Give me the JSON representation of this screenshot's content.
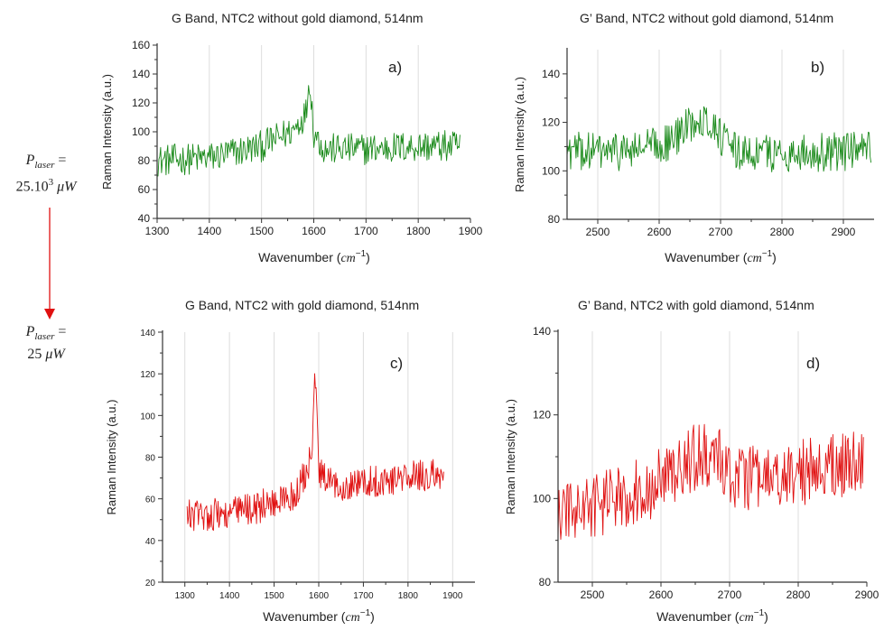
{
  "chart_data": [
    {
      "type": "line",
      "panel": "a)",
      "title": "G Band, NTC2 without gold diamond, 514nm",
      "xlabel": "Wavenumber",
      "xlabel_unit": "cm",
      "xlabel_exp": "−1",
      "ylabel": "Raman Intensity (a.u.)",
      "xlim": [
        1300,
        1900
      ],
      "ylim": [
        40,
        160
      ],
      "xticks": [
        1300,
        1400,
        1500,
        1600,
        1700,
        1800,
        1900
      ],
      "yticks": [
        40,
        60,
        80,
        100,
        120,
        140,
        160
      ],
      "grid": "vertical",
      "color": "#1a8a1a",
      "series": [
        {
          "x_start": 1300,
          "x_end": 1880,
          "noise": 11,
          "profile": [
            [
              1300,
              80
            ],
            [
              1400,
              82
            ],
            [
              1500,
              90
            ],
            [
              1560,
              101
            ],
            [
              1585,
              113
            ],
            [
              1592,
              138
            ],
            [
              1600,
              100
            ],
            [
              1620,
              88
            ],
            [
              1700,
              88
            ],
            [
              1800,
              90
            ],
            [
              1880,
              90
            ]
          ]
        }
      ]
    },
    {
      "type": "line",
      "panel": "b)",
      "title": "G’ Band, NTC2 without gold diamond, 514nm",
      "xlabel": "Wavenumber",
      "xlabel_unit": "cm",
      "xlabel_exp": "−1",
      "ylabel": "Raman Intensity (a.u.)",
      "xlim": [
        2450,
        2950
      ],
      "ylim": [
        80,
        150
      ],
      "xticks": [
        2500,
        2600,
        2700,
        2800,
        2900
      ],
      "yticks": [
        80,
        100,
        120,
        140
      ],
      "grid": "vertical",
      "color": "#1a8a1a",
      "series": [
        {
          "x_start": 2450,
          "x_end": 2945,
          "noise": 8,
          "profile": [
            [
              2450,
              108
            ],
            [
              2550,
              108
            ],
            [
              2620,
              112
            ],
            [
              2665,
              123
            ],
            [
              2690,
              118
            ],
            [
              2720,
              108
            ],
            [
              2800,
              107
            ],
            [
              2900,
              108
            ],
            [
              2945,
              108
            ]
          ]
        }
      ]
    },
    {
      "type": "line",
      "panel": "c)",
      "title": "G Band, NTC2 with gold diamond, 514nm",
      "xlabel": "Wavenumber",
      "xlabel_unit": "cm",
      "xlabel_exp": "−1",
      "ylabel": "Raman Intensity (a.u.)",
      "xlim": [
        1250,
        1950
      ],
      "ylim": [
        20,
        140
      ],
      "xticks": [
        1300,
        1400,
        1500,
        1600,
        1700,
        1800,
        1900
      ],
      "yticks": [
        20,
        40,
        60,
        80,
        100,
        120,
        140
      ],
      "grid": "vertical",
      "color": "#e01010",
      "series": [
        {
          "x_start": 1305,
          "x_end": 1880,
          "noise": 8,
          "profile": [
            [
              1305,
              52
            ],
            [
              1400,
              53
            ],
            [
              1500,
              58
            ],
            [
              1550,
              62
            ],
            [
              1570,
              72
            ],
            [
              1585,
              80
            ],
            [
              1592,
              122
            ],
            [
              1600,
              72
            ],
            [
              1630,
              66
            ],
            [
              1700,
              68
            ],
            [
              1800,
              70
            ],
            [
              1880,
              72
            ]
          ]
        }
      ]
    },
    {
      "type": "line",
      "panel": "d)",
      "title": "G’ Band, NTC2 with gold diamond, 514nm",
      "xlabel": "Wavenumber",
      "xlabel_unit": "cm",
      "xlabel_exp": "−1",
      "ylabel": "Raman Intensity (a.u.)",
      "xlim": [
        2450,
        2900
      ],
      "ylim": [
        80,
        140
      ],
      "xticks": [
        2500,
        2600,
        2700,
        2800,
        2900
      ],
      "yticks": [
        80,
        100,
        120,
        140
      ],
      "grid": "vertical",
      "color": "#e01010",
      "series": [
        {
          "x_start": 2450,
          "x_end": 2895,
          "noise": 8,
          "profile": [
            [
              2450,
              96
            ],
            [
              2500,
              98
            ],
            [
              2550,
              101
            ],
            [
              2600,
              104
            ],
            [
              2650,
              110
            ],
            [
              2680,
              110
            ],
            [
              2700,
              106
            ],
            [
              2750,
              104
            ],
            [
              2800,
              106
            ],
            [
              2850,
              108
            ],
            [
              2895,
              108
            ]
          ]
        }
      ]
    }
  ],
  "laser_labels": [
    {
      "symbol": "P",
      "subscript": "laser",
      "equals": "=",
      "value": "25.10",
      "exponent": "3",
      "unit": "μW"
    },
    {
      "symbol": "P",
      "subscript": "laser",
      "equals": "=",
      "value": "25",
      "exponent": "",
      "unit": "μW"
    }
  ],
  "arrow_color": "#e01010"
}
